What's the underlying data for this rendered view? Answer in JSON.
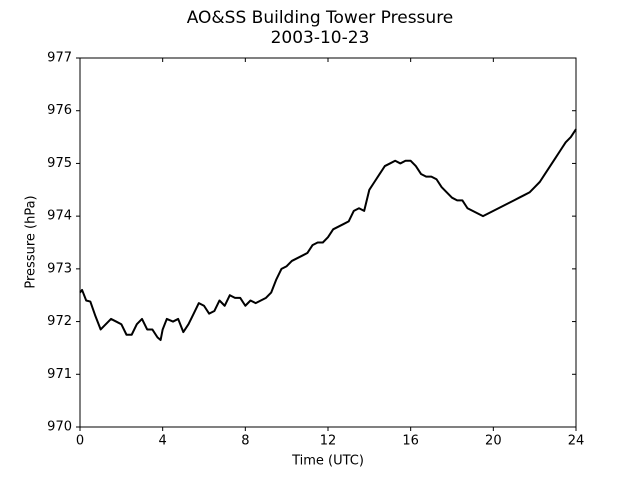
{
  "chart_data": {
    "type": "line",
    "title": "AO&SS Building Tower Pressure",
    "subtitle": "2003-10-23",
    "x_label": "Time (UTC)",
    "y_label": "Pressure (hPa)",
    "xlim": [
      0,
      24
    ],
    "xticks": [
      0,
      4,
      8,
      12,
      16,
      20,
      24
    ],
    "ylim": [
      970,
      977
    ],
    "yticks": [
      970,
      971,
      972,
      973,
      974,
      975,
      976,
      977
    ],
    "grid": false,
    "x": [
      0,
      0.1,
      0.3,
      0.5,
      0.75,
      1.0,
      1.25,
      1.5,
      1.75,
      2.0,
      2.25,
      2.5,
      2.75,
      3.0,
      3.25,
      3.5,
      3.75,
      3.9,
      4.0,
      4.2,
      4.5,
      4.75,
      5.0,
      5.25,
      5.5,
      5.75,
      6.0,
      6.25,
      6.5,
      6.75,
      7.0,
      7.25,
      7.5,
      7.75,
      8.0,
      8.25,
      8.5,
      8.75,
      9.0,
      9.25,
      9.5,
      9.75,
      10.0,
      10.25,
      10.5,
      10.75,
      11.0,
      11.25,
      11.5,
      11.75,
      12.0,
      12.25,
      12.5,
      12.75,
      13.0,
      13.25,
      13.5,
      13.75,
      14.0,
      14.25,
      14.5,
      14.75,
      15.0,
      15.25,
      15.5,
      15.75,
      16.0,
      16.25,
      16.5,
      16.75,
      17.0,
      17.25,
      17.5,
      17.75,
      18.0,
      18.25,
      18.5,
      18.75,
      19.0,
      19.25,
      19.5,
      19.75,
      20.0,
      20.25,
      20.5,
      20.75,
      21.0,
      21.25,
      21.5,
      21.75,
      22.0,
      22.25,
      22.5,
      22.75,
      23.0,
      23.25,
      23.5,
      23.75,
      24.0
    ],
    "series": [
      {
        "color": "#000000",
        "values": [
          972.55,
          972.6,
          972.4,
          972.38,
          972.1,
          971.85,
          971.95,
          972.05,
          972.0,
          971.95,
          971.75,
          971.75,
          971.95,
          972.05,
          971.85,
          971.85,
          971.7,
          971.65,
          971.85,
          972.05,
          972.0,
          972.05,
          971.8,
          971.95,
          972.15,
          972.35,
          972.3,
          972.15,
          972.2,
          972.4,
          972.3,
          972.5,
          972.45,
          972.45,
          972.3,
          972.4,
          972.35,
          972.4,
          972.45,
          972.55,
          972.8,
          973.0,
          973.05,
          973.15,
          973.2,
          973.25,
          973.3,
          973.45,
          973.5,
          973.5,
          973.6,
          973.75,
          973.8,
          973.85,
          973.9,
          974.1,
          974.15,
          974.1,
          974.5,
          974.65,
          974.8,
          974.95,
          975.0,
          975.05,
          975.0,
          975.05,
          975.05,
          974.95,
          974.8,
          974.75,
          974.75,
          974.7,
          974.55,
          974.45,
          974.35,
          974.3,
          974.3,
          974.15,
          974.1,
          974.05,
          974.0,
          974.05,
          974.1,
          974.15,
          974.2,
          974.25,
          974.3,
          974.35,
          974.4,
          974.45,
          974.55,
          974.65,
          974.8,
          974.95,
          975.1,
          975.25,
          975.4,
          975.5,
          975.65
        ]
      }
    ]
  }
}
